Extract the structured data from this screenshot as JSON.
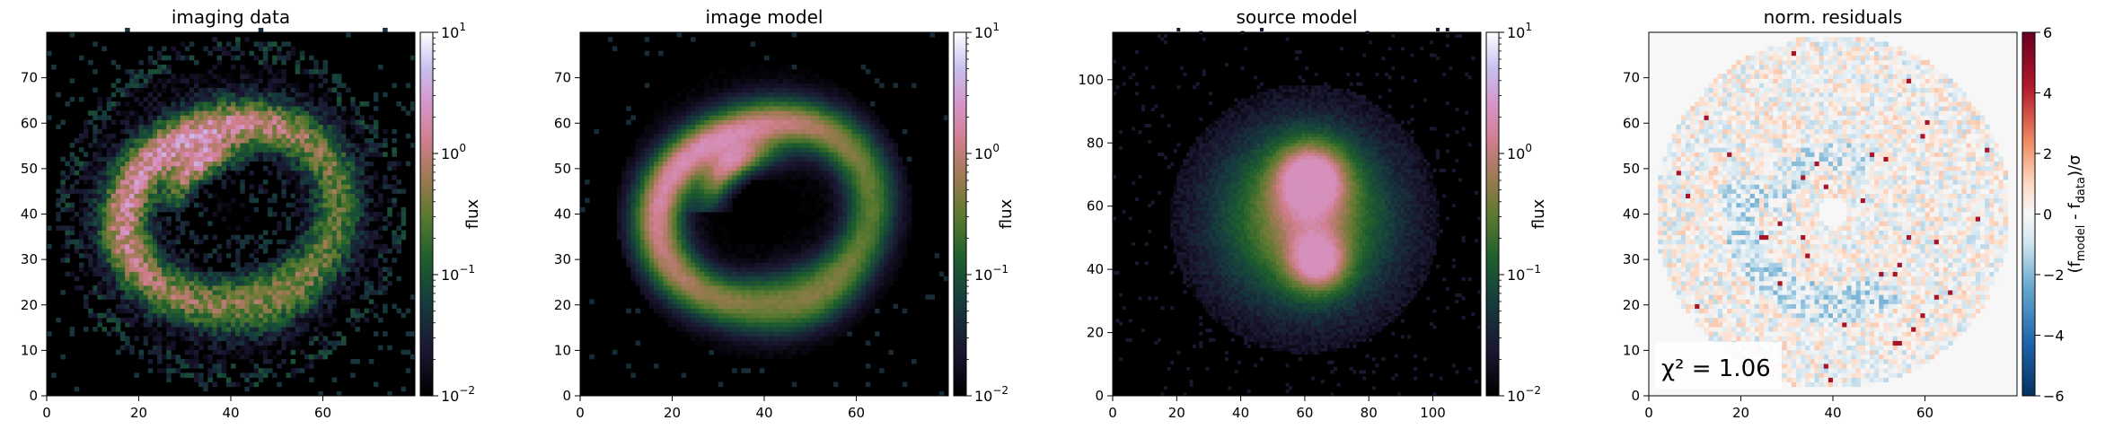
{
  "chart_data": [
    {
      "type": "heatmap",
      "title": "imaging data",
      "xlim": [
        0,
        80
      ],
      "ylim": [
        0,
        80
      ],
      "xticks": [
        0,
        20,
        40,
        60
      ],
      "yticks": [
        0,
        10,
        20,
        30,
        40,
        50,
        60,
        70
      ],
      "colorbar": {
        "label": "flux",
        "scale": "log",
        "range": [
          0.01,
          10
        ],
        "ticks": [
          "10^-2",
          "10^-1",
          "10^0",
          "10^1"
        ],
        "colormap": "cubehelix"
      },
      "content": {
        "pattern": "lensed-ring",
        "center": [
          40,
          40
        ],
        "inner_radius": 12,
        "outer_radius": 30,
        "noise": "high"
      }
    },
    {
      "type": "heatmap",
      "title": "image model",
      "xlim": [
        0,
        80
      ],
      "ylim": [
        0,
        80
      ],
      "xticks": [
        0,
        20,
        40,
        60
      ],
      "yticks": [
        0,
        10,
        20,
        30,
        40,
        50,
        60,
        70
      ],
      "colorbar": {
        "label": "flux",
        "scale": "log",
        "range": [
          0.01,
          10
        ],
        "ticks": [
          "10^-2",
          "10^-1",
          "10^0",
          "10^1"
        ],
        "colormap": "cubehelix"
      },
      "content": {
        "pattern": "lensed-ring",
        "center": [
          40,
          40
        ],
        "inner_radius": 12,
        "outer_radius": 30,
        "noise": "low"
      }
    },
    {
      "type": "heatmap",
      "title": "source model",
      "xlim": [
        0,
        115
      ],
      "ylim": [
        0,
        115
      ],
      "xticks": [
        0,
        20,
        40,
        60,
        80,
        100
      ],
      "yticks": [
        0,
        20,
        40,
        60,
        80,
        100
      ],
      "colorbar": {
        "label": "flux",
        "scale": "log",
        "range": [
          0.01,
          10
        ],
        "ticks": [
          "10^-2",
          "10^-1",
          "10^0",
          "10^1"
        ],
        "colormap": "cubehelix"
      },
      "content": {
        "pattern": "double-blob",
        "centers": [
          [
            62,
            68
          ],
          [
            64,
            42
          ]
        ]
      }
    },
    {
      "type": "heatmap",
      "title": "norm. residuals",
      "xlim": [
        0,
        80
      ],
      "ylim": [
        0,
        80
      ],
      "xticks": [
        0,
        20,
        40,
        60
      ],
      "yticks": [
        0,
        10,
        20,
        30,
        40,
        50,
        60,
        70
      ],
      "colorbar": {
        "label": "(f_model - f_data)/σ",
        "scale": "linear",
        "range": [
          -6,
          6
        ],
        "ticks": [
          "6",
          "4",
          "2",
          "0",
          "−2",
          "−4",
          "−6"
        ],
        "colormap": "RdBu_r"
      },
      "content": {
        "pattern": "residual-disk",
        "center": [
          40,
          40
        ],
        "radius": 38
      },
      "annotation": "χ² = 1.06"
    }
  ]
}
